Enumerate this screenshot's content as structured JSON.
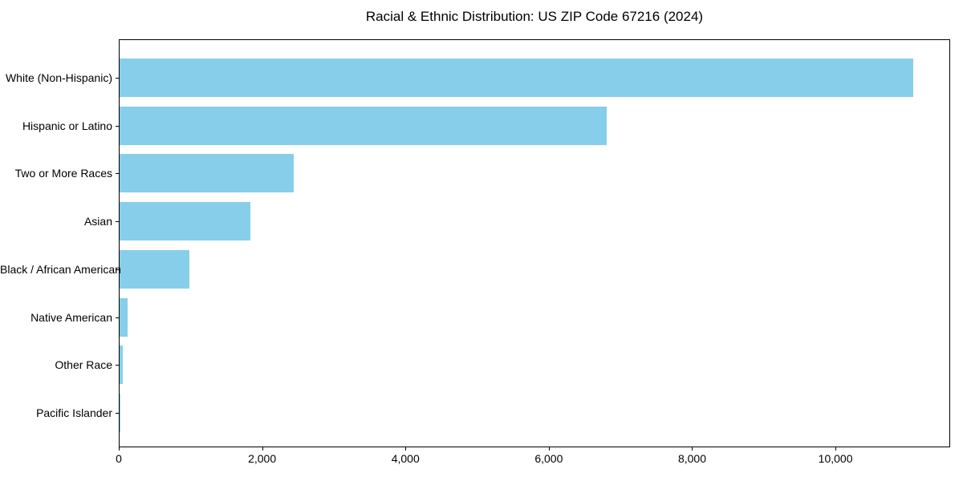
{
  "chart_data": {
    "type": "bar",
    "orientation": "horizontal",
    "title": "Racial & Ethnic Distribution: US ZIP Code 67216 (2024)",
    "categories": [
      "White (Non-Hispanic)",
      "Hispanic or Latino",
      "Two or More Races",
      "Asian",
      "Black / African American",
      "Native American",
      "Other Race",
      "Pacific Islander"
    ],
    "values": [
      11070,
      6800,
      2430,
      1820,
      970,
      110,
      40,
      5
    ],
    "xlabel": "",
    "ylabel": "",
    "xlim": [
      0,
      11600
    ],
    "xticks": {
      "values": [
        0,
        2000,
        4000,
        6000,
        8000,
        10000
      ],
      "labels": [
        "0",
        "2,000",
        "4,000",
        "6,000",
        "8,000",
        "10,000"
      ]
    },
    "grid": false,
    "legend": null,
    "colors": {
      "bar": "#87CEEB",
      "frame": "#000000",
      "text": "#000000",
      "background": "#ffffff"
    }
  }
}
